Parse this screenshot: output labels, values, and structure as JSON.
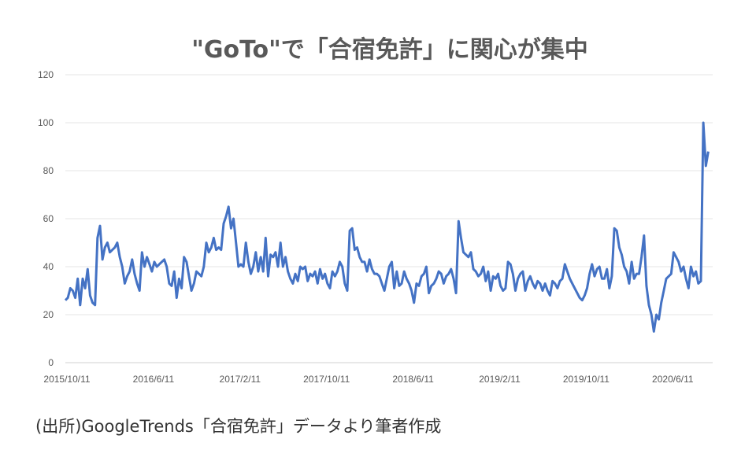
{
  "chart_data": {
    "type": "line",
    "title": "\"GoTo\"で「合宿免許」に関心が集中",
    "xlabel": "",
    "ylabel": "",
    "ylim": [
      0,
      120
    ],
    "yticks": [
      0,
      20,
      40,
      60,
      80,
      100,
      120
    ],
    "x_tick_labels": [
      "2015/10/11",
      "2016/6/11",
      "2017/2/11",
      "2017/10/11",
      "2018/6/11",
      "2019/2/11",
      "2019/10/11",
      "2020/6/11"
    ],
    "grid": true,
    "legend": "none",
    "color": "#4472C4",
    "values": [
      26,
      27,
      31,
      30,
      27,
      35,
      24,
      35,
      31,
      39,
      28,
      25,
      24,
      52,
      57,
      43,
      48,
      50,
      46,
      47,
      48,
      50,
      44,
      40,
      33,
      36,
      38,
      43,
      37,
      33,
      30,
      46,
      40,
      44,
      41,
      38,
      42,
      40,
      41,
      42,
      43,
      40,
      33,
      32,
      38,
      27,
      35,
      31,
      44,
      42,
      36,
      30,
      33,
      38,
      37,
      36,
      40,
      50,
      46,
      48,
      52,
      47,
      48,
      47,
      58,
      61,
      65,
      56,
      60,
      50,
      40,
      41,
      40,
      50,
      42,
      37,
      40,
      46,
      38,
      44,
      38,
      52,
      36,
      45,
      44,
      46,
      40,
      50,
      40,
      44,
      38,
      35,
      33,
      37,
      34,
      40,
      39,
      40,
      34,
      37,
      36,
      38,
      33,
      39,
      35,
      37,
      33,
      31,
      38,
      36,
      38,
      42,
      40,
      33,
      30,
      55,
      56,
      47,
      48,
      44,
      42,
      42,
      38,
      43,
      39,
      37,
      37,
      36,
      33,
      30,
      35,
      40,
      42,
      31,
      38,
      32,
      33,
      38,
      35,
      33,
      30,
      25,
      33,
      32,
      36,
      37,
      40,
      29,
      32,
      33,
      35,
      38,
      37,
      33,
      36,
      37,
      39,
      35,
      29,
      59,
      52,
      46,
      45,
      44,
      46,
      39,
      38,
      36,
      37,
      40,
      34,
      38,
      30,
      36,
      35,
      37,
      32,
      30,
      31,
      42,
      41,
      37,
      30,
      35,
      37,
      38,
      30,
      34,
      36,
      33,
      31,
      34,
      33,
      30,
      33,
      30,
      28,
      34,
      33,
      31,
      34,
      35,
      41,
      38,
      35,
      33,
      31,
      29,
      27,
      26,
      28,
      31,
      37,
      41,
      36,
      39,
      40,
      35,
      35,
      39,
      31,
      36,
      56,
      55,
      48,
      45,
      40,
      38,
      33,
      42,
      35,
      37,
      37,
      44,
      53,
      32,
      24,
      20,
      13,
      20,
      18,
      25,
      30,
      35,
      36,
      37,
      46,
      44,
      42,
      38,
      40,
      35,
      31,
      40,
      36,
      38,
      33,
      34,
      100,
      82,
      88
    ]
  },
  "caption": "(出所)GoogleTrends「合宿免許」データより筆者作成"
}
